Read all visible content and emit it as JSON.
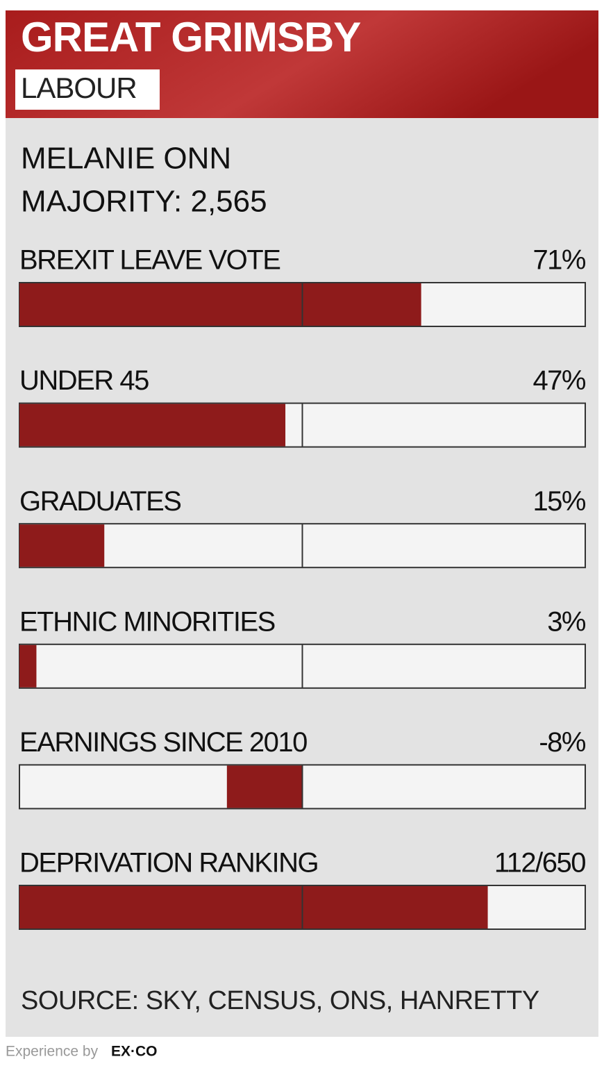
{
  "header": {
    "title": "GREAT GRIMSBY",
    "party": "LABOUR"
  },
  "mp": {
    "name": "MELANIE ONN",
    "majority": "MAJORITY: 2,565"
  },
  "chart_data": [
    {
      "type": "bar",
      "title": "BREXIT LEAVE VOTE",
      "values": [
        71
      ],
      "value_labels": [
        "71%"
      ],
      "xlim": [
        0,
        100
      ],
      "color": "#8e1b1b"
    },
    {
      "type": "bar",
      "title": "UNDER 45",
      "values": [
        47
      ],
      "value_labels": [
        "47%"
      ],
      "xlim": [
        0,
        100
      ],
      "color": "#8e1b1b"
    },
    {
      "type": "bar",
      "title": "GRADUATES",
      "values": [
        15
      ],
      "value_labels": [
        "15%"
      ],
      "xlim": [
        0,
        100
      ],
      "color": "#8e1b1b"
    },
    {
      "type": "bar",
      "title": "ETHNIC MINORITIES",
      "values": [
        3
      ],
      "value_labels": [
        "3%"
      ],
      "xlim": [
        0,
        100
      ],
      "color": "#8e1b1b"
    },
    {
      "type": "bar",
      "title": "EARNINGS SINCE 2010",
      "values": [
        -8
      ],
      "value_labels": [
        "-8%"
      ],
      "xlim": [
        -30,
        30
      ],
      "color": "#8e1b1b"
    },
    {
      "type": "bar",
      "title": "DEPRIVATION RANKING",
      "values": [
        112
      ],
      "value_labels": [
        "112/650"
      ],
      "xlim": [
        650,
        0
      ],
      "color": "#8e1b1b"
    }
  ],
  "source": "SOURCE: SKY, CENSUS, ONS, HANRETTY",
  "footer": {
    "text": "Experience by",
    "brand": "EX·CO"
  }
}
